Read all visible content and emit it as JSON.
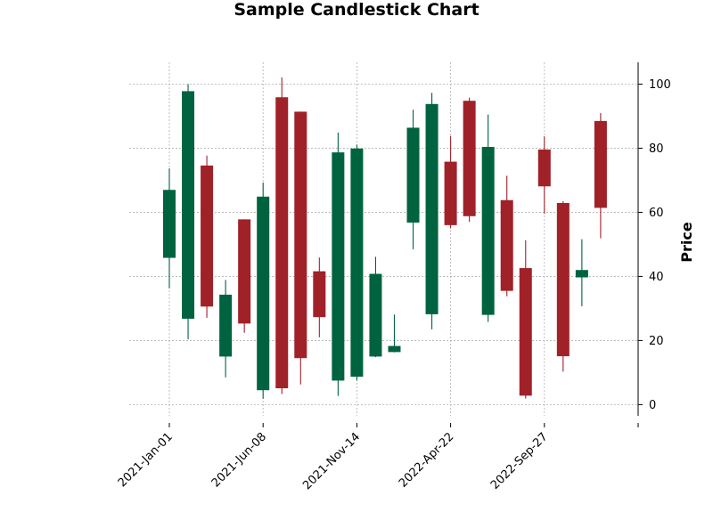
{
  "chart_data": {
    "type": "candlestick",
    "title": "Sample Candlestick Chart",
    "xlabel": "",
    "ylabel": "Price",
    "ylim": [
      -3.5,
      106.8
    ],
    "y_ticks": [
      0,
      20,
      40,
      60,
      80,
      100
    ],
    "y_axis_side": "right",
    "grid": true,
    "up_color": "#006340",
    "down_color": "#a02128",
    "x_tick_labels": [
      {
        "label": "2021-Jan-01",
        "index": 0
      },
      {
        "label": "2021-Jun-08",
        "index": 5
      },
      {
        "label": "2021-Nov-14",
        "index": 10
      },
      {
        "label": "2022-Apr-22",
        "index": 15
      },
      {
        "label": "2022-Sep-27",
        "index": 20
      },
      {
        "label": "",
        "index": 25
      }
    ],
    "candles": [
      {
        "open": 45.8,
        "high": 73.7,
        "low": 36.3,
        "close": 67.0
      },
      {
        "open": 26.8,
        "high": 100.0,
        "low": 20.4,
        "close": 97.8
      },
      {
        "open": 74.6,
        "high": 77.7,
        "low": 27.1,
        "close": 30.6
      },
      {
        "open": 15.0,
        "high": 38.9,
        "low": 8.5,
        "close": 34.3
      },
      {
        "open": 57.8,
        "high": 57.8,
        "low": 22.4,
        "close": 25.3
      },
      {
        "open": 4.5,
        "high": 69.3,
        "low": 1.8,
        "close": 64.9
      },
      {
        "open": 95.9,
        "high": 102.1,
        "low": 3.3,
        "close": 5.1
      },
      {
        "open": 91.4,
        "high": 91.4,
        "low": 6.3,
        "close": 14.5
      },
      {
        "open": 41.6,
        "high": 45.9,
        "low": 21.0,
        "close": 27.3
      },
      {
        "open": 7.5,
        "high": 84.9,
        "low": 2.7,
        "close": 78.7
      },
      {
        "open": 8.7,
        "high": 81.1,
        "low": 7.5,
        "close": 79.9
      },
      {
        "open": 15.0,
        "high": 46.1,
        "low": 14.8,
        "close": 40.8
      },
      {
        "open": 16.4,
        "high": 28.1,
        "low": 16.3,
        "close": 18.3
      },
      {
        "open": 56.8,
        "high": 92.0,
        "low": 48.5,
        "close": 86.4
      },
      {
        "open": 28.2,
        "high": 97.3,
        "low": 23.5,
        "close": 93.8
      },
      {
        "open": 75.8,
        "high": 83.8,
        "low": 55.0,
        "close": 56.0
      },
      {
        "open": 94.8,
        "high": 95.8,
        "low": 57.0,
        "close": 58.8
      },
      {
        "open": 28.0,
        "high": 90.5,
        "low": 25.8,
        "close": 80.4
      },
      {
        "open": 63.8,
        "high": 71.4,
        "low": 33.8,
        "close": 35.5
      },
      {
        "open": 42.6,
        "high": 51.3,
        "low": 1.9,
        "close": 2.8
      },
      {
        "open": 79.6,
        "high": 83.7,
        "low": 59.6,
        "close": 68.1
      },
      {
        "open": 62.9,
        "high": 63.5,
        "low": 10.3,
        "close": 15.1
      },
      {
        "open": 39.7,
        "high": 51.6,
        "low": 30.7,
        "close": 42.0
      },
      {
        "open": 88.5,
        "high": 91.0,
        "low": 51.9,
        "close": 61.4
      }
    ]
  }
}
